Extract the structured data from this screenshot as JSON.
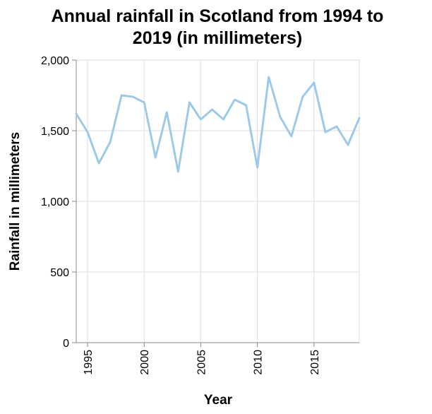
{
  "chart_data": {
    "type": "line",
    "title_lines": [
      "Annual rainfall in Scotland from 1994 to",
      "2019 (in millimeters)"
    ],
    "xlabel": "Year",
    "ylabel": "Rainfall in millimeters",
    "xlim": [
      1994,
      2019
    ],
    "ylim": [
      0,
      2000
    ],
    "x_ticks": [
      1995,
      2000,
      2005,
      2010,
      2015
    ],
    "x_tick_labels": [
      "1995",
      "2000",
      "2005",
      "2010",
      "2015"
    ],
    "y_ticks": [
      0,
      500,
      1000,
      1500,
      2000
    ],
    "y_tick_labels": [
      "0",
      "500",
      "1,000",
      "1,500",
      "2,000"
    ],
    "grid": true,
    "series_color": "#9ecae9",
    "x": [
      1994,
      1995,
      1996,
      1997,
      1998,
      1999,
      2000,
      2001,
      2002,
      2003,
      2004,
      2005,
      2006,
      2007,
      2008,
      2009,
      2010,
      2011,
      2012,
      2013,
      2014,
      2015,
      2016,
      2017,
      2018,
      2019
    ],
    "values": [
      1620,
      1490,
      1270,
      1420,
      1750,
      1740,
      1700,
      1310,
      1630,
      1210,
      1700,
      1580,
      1650,
      1580,
      1720,
      1680,
      1240,
      1880,
      1600,
      1460,
      1740,
      1840,
      1490,
      1530,
      1400,
      1590
    ]
  }
}
